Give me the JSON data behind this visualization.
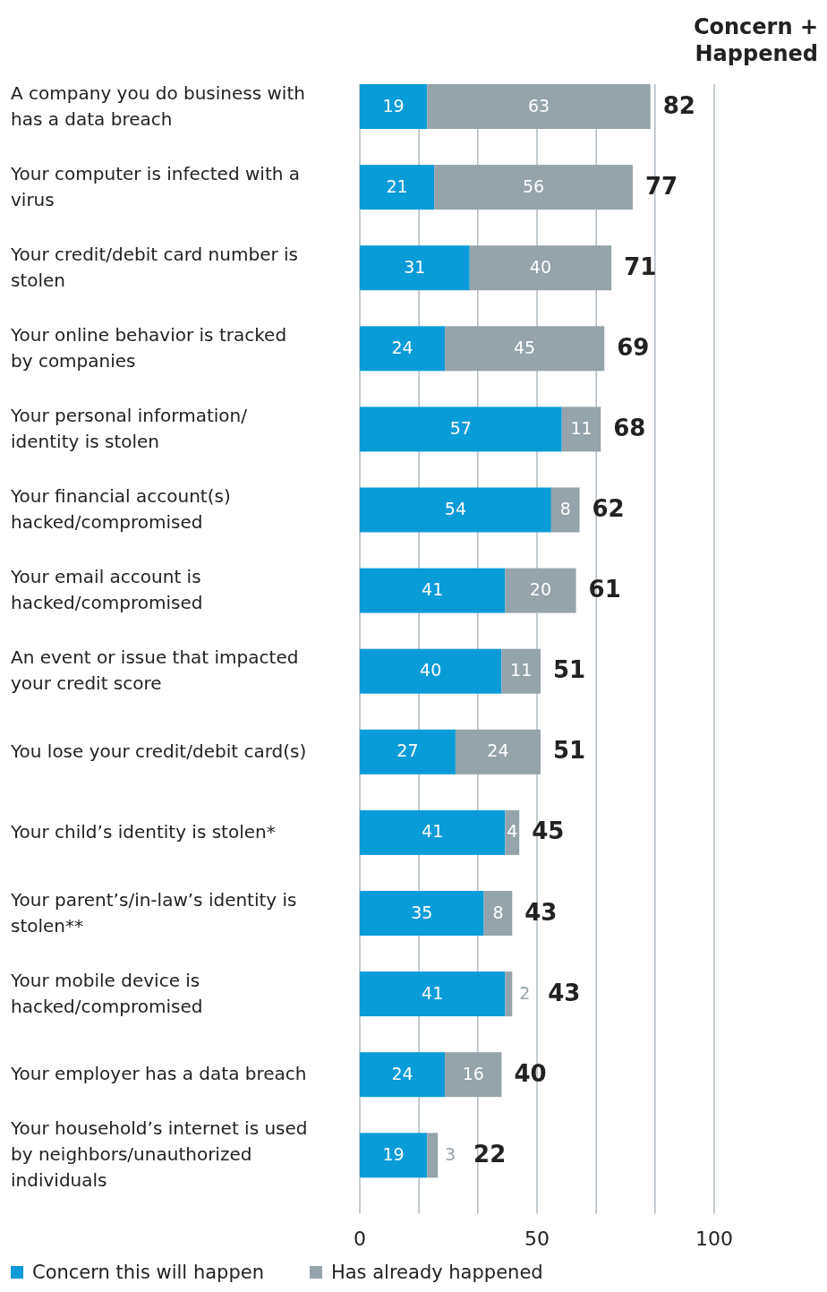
{
  "chart_data": {
    "type": "bar",
    "orientation": "horizontal",
    "stacked": true,
    "categories": [
      "A company you do business with has a data breach",
      "Your computer is infected with a virus",
      "Your credit/debit card number is stolen",
      "Your online behavior is tracked by companies",
      "Your personal information/ identity is stolen",
      "Your financial account(s) hacked/compromised",
      "Your email account is hacked/compromised",
      "An event or issue that impacted your credit score",
      "You lose your credit/debit card(s)",
      "Your child’s identity is stolen*",
      "Your parent’s/in-law’s identity is stolen**",
      "Your mobile device is hacked/compromised",
      "Your employer has a data breach",
      "Your household’s internet is used by neighbors/unauthorized individuals"
    ],
    "series": [
      {
        "name": "Concern this will happen",
        "color": "#0a9bd9",
        "values": [
          19,
          21,
          31,
          24,
          57,
          54,
          41,
          40,
          27,
          41,
          35,
          41,
          24,
          19
        ]
      },
      {
        "name": "Has already happened",
        "color": "#95a3aa",
        "values": [
          63,
          56,
          40,
          45,
          11,
          8,
          20,
          11,
          24,
          4,
          8,
          2,
          16,
          3
        ]
      }
    ],
    "totals": [
      "82",
      "77",
      "71",
      "69",
      "68",
      "62",
      "61",
      "51",
      "51",
      "45",
      "43",
      "43",
      "40",
      "22"
    ],
    "annotations": [
      "Concern + Happened"
    ],
    "xlim": [
      0,
      100
    ],
    "xticks": [
      0,
      {
        "value": 16.7,
        "label": null
      },
      {
        "value": 33.3,
        "label": null
      },
      50,
      {
        "value": 66.7,
        "label": null
      },
      {
        "value": 83.3,
        "label": null
      },
      100
    ],
    "grid": "x",
    "data_labels": true,
    "legend": "bottom left"
  }
}
